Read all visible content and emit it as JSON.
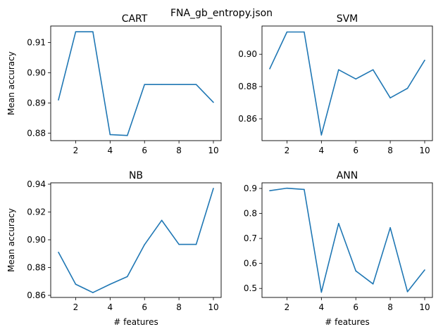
{
  "figure": {
    "suptitle": "FNA_gb_entropy.json",
    "line_color": "#1f77b4"
  },
  "chart_data": [
    {
      "type": "line",
      "title": "CART",
      "xlabel": "",
      "ylabel": "Mean accuracy",
      "xlim": [
        0.55,
        10.45
      ],
      "ylim": [
        0.8775,
        0.9155
      ],
      "xticks": [
        2,
        4,
        6,
        8,
        10
      ],
      "yticks": [
        0.88,
        0.89,
        0.9,
        0.91
      ],
      "ytick_labels": [
        "0.88",
        "0.89",
        "0.90",
        "0.91"
      ],
      "grid": false,
      "x": [
        1,
        2,
        3,
        4,
        5,
        6,
        7,
        8,
        9,
        10
      ],
      "y": [
        0.891,
        0.9136,
        0.9136,
        0.8795,
        0.8792,
        0.8961,
        0.8961,
        0.8961,
        0.8961,
        0.8902
      ]
    },
    {
      "type": "line",
      "title": "SVM",
      "xlabel": "",
      "ylabel": "",
      "xlim": [
        0.55,
        10.45
      ],
      "ylim": [
        0.8465,
        0.9175
      ],
      "xticks": [
        2,
        4,
        6,
        8,
        10
      ],
      "yticks": [
        0.86,
        0.88,
        0.9
      ],
      "ytick_labels": [
        "0.86",
        "0.88",
        "0.90"
      ],
      "grid": false,
      "x": [
        1,
        2,
        3,
        4,
        5,
        6,
        7,
        8,
        9,
        10
      ],
      "y": [
        0.891,
        0.9138,
        0.9138,
        0.85,
        0.8904,
        0.8847,
        0.8904,
        0.873,
        0.8789,
        0.8963
      ]
    },
    {
      "type": "line",
      "title": "NB",
      "xlabel": "# features",
      "ylabel": "Mean accuracy",
      "xlim": [
        0.55,
        10.45
      ],
      "ylim": [
        0.8585,
        0.941
      ],
      "xticks": [
        2,
        4,
        6,
        8,
        10
      ],
      "yticks": [
        0.86,
        0.88,
        0.9,
        0.92,
        0.94
      ],
      "ytick_labels": [
        "0.86",
        "0.88",
        "0.90",
        "0.92",
        "0.94"
      ],
      "grid": false,
      "x": [
        1,
        2,
        3,
        4,
        5,
        6,
        7,
        8,
        9,
        10
      ],
      "y": [
        0.891,
        0.868,
        0.862,
        0.868,
        0.8735,
        0.8965,
        0.914,
        0.8967,
        0.8967,
        0.937
      ]
    },
    {
      "type": "line",
      "title": "ANN",
      "xlabel": "# features",
      "ylabel": "",
      "xlim": [
        0.55,
        10.45
      ],
      "ylim": [
        0.464,
        0.9225
      ],
      "xticks": [
        2,
        4,
        6,
        8,
        10
      ],
      "yticks": [
        0.5,
        0.6,
        0.7,
        0.8,
        0.9
      ],
      "ytick_labels": [
        "0.5",
        "0.6",
        "0.7",
        "0.8",
        "0.9"
      ],
      "grid": false,
      "x": [
        1,
        2,
        3,
        4,
        5,
        6,
        7,
        8,
        9,
        10
      ],
      "y": [
        0.891,
        0.901,
        0.896,
        0.485,
        0.76,
        0.57,
        0.518,
        0.743,
        0.487,
        0.574
      ]
    }
  ]
}
